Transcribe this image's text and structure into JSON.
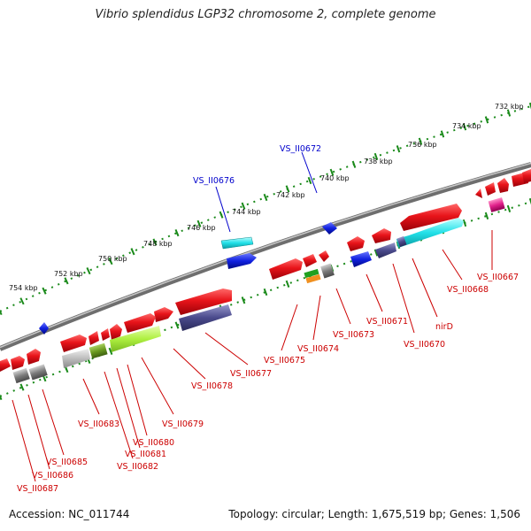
{
  "title": "Vibrio splendidus LGP32 chromosome 2, complete genome",
  "footer": {
    "accession": "Accession: NC_011744",
    "summary": "Topology: circular; Length: 1,675,519 bp; Genes: 1,506"
  },
  "tick_labels": [
    "732 kbp",
    "734 kbp",
    "736 kbp",
    "738 kbp",
    "740 kbp",
    "742 kbp",
    "744 kbp",
    "746 kbp",
    "748 kbp",
    "750 kbp",
    "752 kbp",
    "754 kbp"
  ],
  "gene_labels_top": [
    "VS_II0672",
    "VS_II0676"
  ],
  "gene_labels_bottom": [
    "VS_II0667",
    "VS_II0668",
    "nirD",
    "VS_II0670",
    "VS_II0671",
    "VS_II0673",
    "VS_II0674",
    "VS_II0675",
    "VS_II0677",
    "VS_II0678",
    "VS_II0679",
    "VS_II0680",
    "VS_II0681",
    "VS_II0682",
    "VS_II0683",
    "VS_II0685",
    "VS_II0686",
    "VS_II0687"
  ],
  "colors": {
    "forward": "#e8141a",
    "reverse_blue": "#1020e0",
    "cyan": "#22e0e8",
    "gray": "#8a8a8a",
    "navy": "#4a4a8c",
    "lime": "#aef040",
    "olive": "#6a9a20",
    "silver": "#bdbdbd",
    "magenta": "#e0208a",
    "green": "#20a020",
    "orange": "#f09020",
    "tick_green": "#1a8a1a",
    "backbone": "#808080"
  }
}
